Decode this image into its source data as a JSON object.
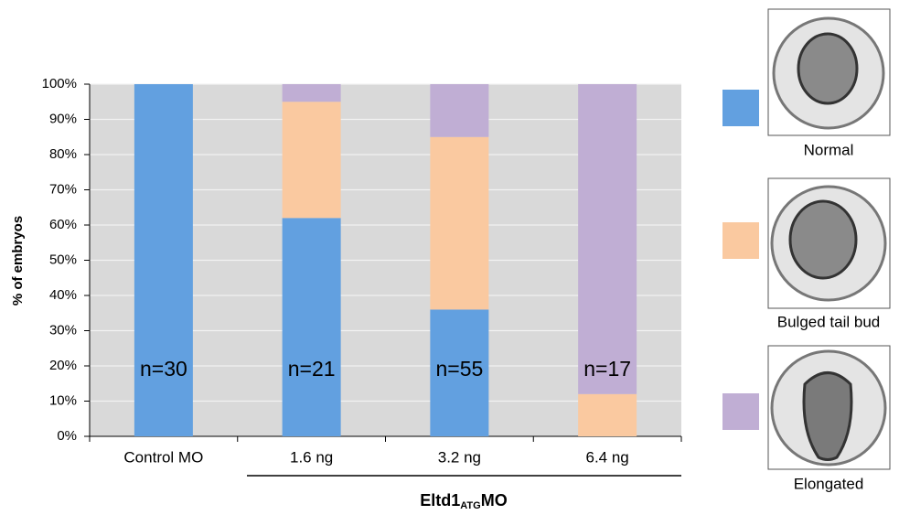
{
  "chart_data": {
    "type": "stacked_bar",
    "ylabel": "% of embryos",
    "categories": [
      "Control MO",
      "1.6 ng",
      "3.2 ng",
      "6.4 ng"
    ],
    "n_labels": [
      "n=30",
      "n=21",
      "n=55",
      "n=17"
    ],
    "group_label": {
      "text": "Eltd1",
      "subscript": "ATG",
      "suffix": "MO"
    },
    "series": [
      {
        "name": "Normal",
        "color": "#62a0e0",
        "values": [
          100,
          62,
          36,
          0
        ]
      },
      {
        "name": "Bulged tail bud",
        "color": "#fac9a0",
        "values": [
          0,
          33,
          49,
          12
        ]
      },
      {
        "name": "Elongated",
        "color": "#c0aed4",
        "values": [
          0,
          5,
          15,
          88
        ]
      }
    ],
    "ylim": [
      0,
      100
    ],
    "yticks": [
      {
        "value": 0,
        "label": "0%"
      },
      {
        "value": 10,
        "label": "10%"
      },
      {
        "value": 20,
        "label": "20%"
      },
      {
        "value": 30,
        "label": "30%"
      },
      {
        "value": 40,
        "label": "40%"
      },
      {
        "value": 50,
        "label": "50%"
      },
      {
        "value": 60,
        "label": "60%"
      },
      {
        "value": 70,
        "label": "70%"
      },
      {
        "value": 80,
        "label": "80%"
      },
      {
        "value": 90,
        "label": "90%"
      },
      {
        "value": 100,
        "label": "100%"
      }
    ],
    "grid": true
  }
}
